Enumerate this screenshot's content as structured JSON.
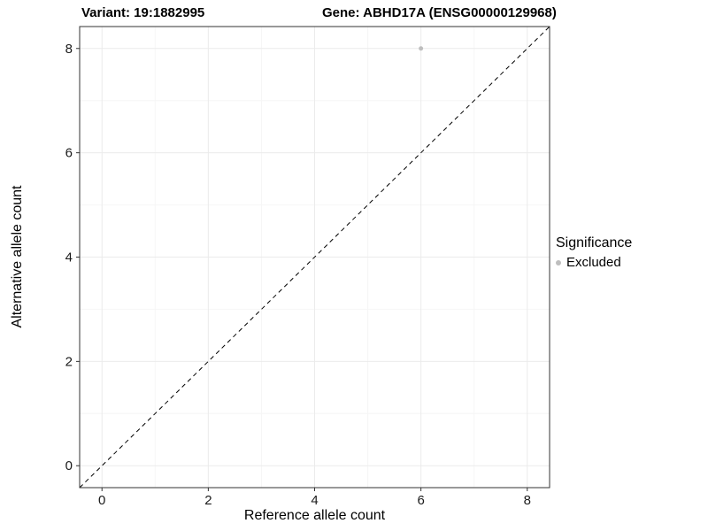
{
  "titles": {
    "left": "Variant: 19:1882995",
    "right": "Gene: ABHD17A (ENSG00000129968)"
  },
  "legend": {
    "title": "Significance",
    "items": [
      {
        "label": "Excluded",
        "color": "#bebebe"
      }
    ]
  },
  "colors": {
    "background": "#ffffff",
    "grid_major": "#ebebeb",
    "grid_minor": "#f6f6f6",
    "panel_border": "#333333",
    "tick": "#333333",
    "reference_line": "#000000",
    "point": "#bebebe"
  },
  "chart_data": {
    "type": "scatter",
    "title": "Variant: 19:1882995   Gene: ABHD17A (ENSG00000129968)",
    "xlabel": "Reference allele count",
    "ylabel": "Alternative allele count",
    "xlim": [
      -0.42,
      8.42
    ],
    "ylim": [
      -0.42,
      8.42
    ],
    "x_ticks": [
      0,
      2,
      4,
      6,
      8
    ],
    "y_ticks": [
      0,
      2,
      4,
      6,
      8
    ],
    "x_minor_ticks": [
      1,
      3,
      5,
      7
    ],
    "y_minor_ticks": [
      1,
      3,
      5,
      7
    ],
    "grid": true,
    "legend_position": "right",
    "legend_title": "Significance",
    "series": [
      {
        "name": "Excluded",
        "color": "#bebebe",
        "points": [
          {
            "x": 6,
            "y": 8
          }
        ]
      }
    ],
    "reference_line": {
      "type": "identity",
      "style": "dashed",
      "from": [
        -0.42,
        -0.42
      ],
      "to": [
        8.42,
        8.42
      ],
      "color": "#000000"
    }
  }
}
